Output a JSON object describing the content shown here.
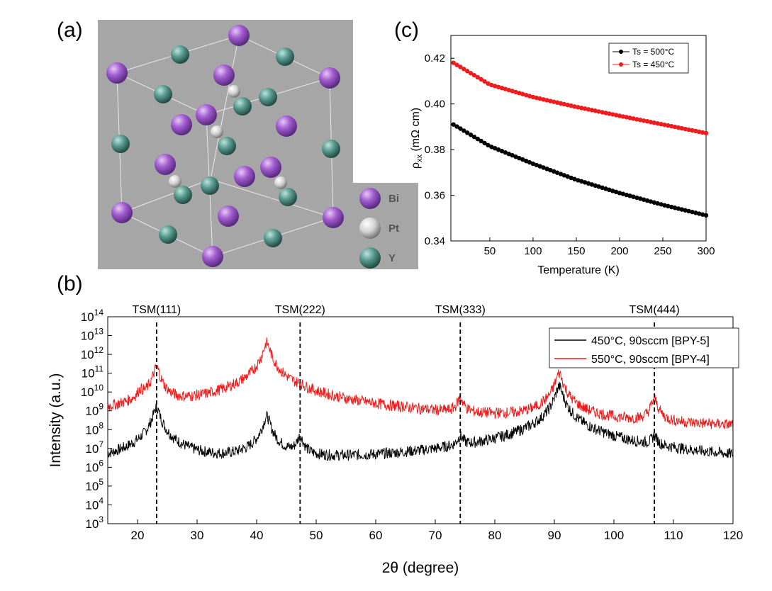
{
  "panels": {
    "a": "(a)",
    "b": "(b)",
    "c": "(c)"
  },
  "crystal": {
    "key": [
      "Bi",
      "Pt",
      "Y"
    ],
    "colors": {
      "Bi": "#9b59c9",
      "Pt": "#d9d9d9",
      "Y": "#4f8f86",
      "background": "#a6a6a6"
    }
  },
  "chart_data": [
    {
      "id": "c",
      "type": "scatter",
      "title": "",
      "xlabel": "Temperature (K)",
      "ylabel_main": "ρ",
      "ylabel_sub": "xx",
      "ylabel_rest": " (mΩ cm)",
      "xlim": [
        5,
        300
      ],
      "ylim": [
        0.34,
        0.43
      ],
      "xticks": [
        50,
        100,
        150,
        200,
        250,
        300
      ],
      "yticks": [
        0.34,
        0.36,
        0.38,
        0.4,
        0.42
      ],
      "ytick_labels": [
        "0.34",
        "0.36",
        "0.38",
        "0.40",
        "0.42"
      ],
      "legend_position": "top-right",
      "grid": false,
      "series": [
        {
          "name": "Ts = 500°C",
          "color": "#000000",
          "x": [
            8,
            50,
            100,
            150,
            200,
            250,
            300
          ],
          "y": [
            0.391,
            0.3815,
            0.3738,
            0.3668,
            0.361,
            0.3558,
            0.3512
          ]
        },
        {
          "name": "Ts = 450°C",
          "color": "#ee1c1c",
          "x": [
            8,
            50,
            100,
            150,
            200,
            250,
            300
          ],
          "y": [
            0.418,
            0.4085,
            0.403,
            0.3987,
            0.3948,
            0.391,
            0.3872
          ]
        }
      ]
    },
    {
      "id": "b",
      "type": "line",
      "title": "",
      "xlabel": "2θ (degree)",
      "ylabel": "Intensity (a.u.)",
      "yscale": "log",
      "xlim": [
        15,
        120
      ],
      "ylim": [
        1000,
        100000000000000.0
      ],
      "xticks": [
        20,
        30,
        40,
        50,
        60,
        70,
        80,
        90,
        100,
        110,
        120
      ],
      "yticks_exp": [
        3,
        4,
        5,
        6,
        7,
        8,
        9,
        10,
        11,
        12,
        13,
        14
      ],
      "ytick_base": "10",
      "legend_position": "top-right",
      "grid": false,
      "peak_markers": [
        {
          "x": 23.2,
          "label": "TSM(111)"
        },
        {
          "x": 47.3,
          "label": "TSM(222)"
        },
        {
          "x": 74.2,
          "label": "TSM(333)"
        },
        {
          "x": 106.8,
          "label": "TSM(444)"
        }
      ],
      "series": [
        {
          "name": "450°C, 90sccm [BPY-5]",
          "color": "#000000",
          "baseline": 200000.0,
          "peaks": [
            [
              20.5,
              800000.0
            ],
            [
              23.2,
              1500000000.0
            ],
            [
              37.5,
              500000.0
            ],
            [
              41.7,
              500000000.0
            ],
            [
              47.3,
              40000000.0
            ],
            [
              65.5,
              500000.0
            ],
            [
              74.2,
              30000000.0
            ],
            [
              90.8,
              20000000000.0
            ],
            [
              106.8,
              30000000.0
            ]
          ]
        },
        {
          "name": "550°C, 90sccm [BPY-4]",
          "color": "#ee1c1c",
          "baseline": 15000000.0,
          "peaks": [
            [
              20.5,
              8000000000.0
            ],
            [
              23.2,
              200000000000.0
            ],
            [
              41.7,
              4000000000000.0
            ],
            [
              44.2,
              60000000.0
            ],
            [
              47.3,
              5000000000.0
            ],
            [
              64.7,
              300000000.0
            ],
            [
              74.2,
              4000000000.0
            ],
            [
              90.8,
              100000000000.0
            ],
            [
              106.8,
              4000000000.0
            ]
          ]
        }
      ]
    }
  ]
}
